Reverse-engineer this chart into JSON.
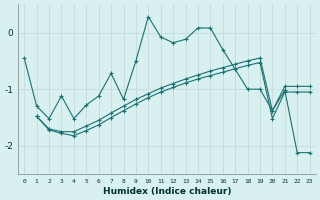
{
  "xlabel": "Humidex (Indice chaleur)",
  "background_color": "#d8f0f0",
  "grid_color": "#c8dede",
  "line_color": "#1a7070",
  "x_values": [
    0,
    1,
    2,
    3,
    4,
    5,
    6,
    7,
    8,
    9,
    10,
    11,
    12,
    13,
    14,
    15,
    16,
    17,
    18,
    19,
    20,
    21,
    22,
    23
  ],
  "main_line": [
    -0.45,
    -1.3,
    -1.52,
    -1.12,
    -1.52,
    -1.28,
    -1.12,
    -0.72,
    -1.18,
    -0.5,
    0.28,
    -0.08,
    -0.18,
    -0.12,
    0.08,
    0.08,
    -0.3,
    -0.65,
    -1.0,
    -1.0,
    -1.38,
    -1.02,
    -2.12,
    -2.12
  ],
  "line2_x": [
    1,
    2,
    3,
    4,
    5,
    6,
    7,
    8,
    9,
    10,
    11,
    12,
    13,
    14,
    15,
    16,
    17,
    18,
    19,
    20,
    21,
    22,
    23
  ],
  "line2": [
    -1.48,
    -1.7,
    -1.75,
    -1.75,
    -1.65,
    -1.55,
    -1.42,
    -1.3,
    -1.18,
    -1.08,
    -0.98,
    -0.9,
    -0.82,
    -0.75,
    -0.68,
    -0.62,
    -0.56,
    -0.5,
    -0.45,
    -1.38,
    -0.95,
    -0.95,
    -0.95
  ],
  "line3_x": [
    1,
    2,
    3,
    4,
    5,
    6,
    7,
    8,
    9,
    10,
    11,
    12,
    13,
    14,
    15,
    16,
    17,
    18,
    19,
    20,
    21,
    22,
    23
  ],
  "line3": [
    -1.48,
    -1.72,
    -1.78,
    -1.82,
    -1.73,
    -1.63,
    -1.5,
    -1.38,
    -1.26,
    -1.15,
    -1.05,
    -0.97,
    -0.89,
    -0.82,
    -0.76,
    -0.7,
    -0.64,
    -0.58,
    -0.53,
    -1.52,
    -1.05,
    -1.05,
    -1.05
  ],
  "ylim": [
    -2.5,
    0.5
  ],
  "xlim": [
    -0.5,
    23.5
  ],
  "yticks": [
    0,
    -1,
    -2
  ],
  "xtick_labels": [
    "0",
    "1",
    "2",
    "3",
    "4",
    "5",
    "6",
    "7",
    "8",
    "9",
    "10",
    "11",
    "12",
    "13",
    "14",
    "15",
    "16",
    "17",
    "18",
    "19",
    "20",
    "21",
    "22",
    "23"
  ]
}
